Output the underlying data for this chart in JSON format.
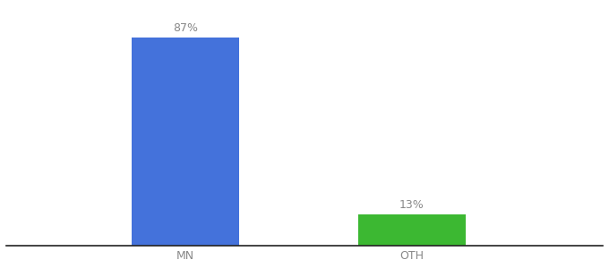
{
  "categories": [
    "MN",
    "OTH"
  ],
  "values": [
    87,
    13
  ],
  "bar_colors": [
    "#4472db",
    "#3cb832"
  ],
  "labels": [
    "87%",
    "13%"
  ],
  "background_color": "#ffffff",
  "bar_width": 0.18,
  "ylim": [
    0,
    100
  ],
  "xlim": [
    0.0,
    1.0
  ],
  "x_positions": [
    0.3,
    0.68
  ],
  "label_fontsize": 9,
  "tick_fontsize": 9,
  "tick_color": "#888888",
  "label_color": "#888888",
  "spine_color": "#222222"
}
